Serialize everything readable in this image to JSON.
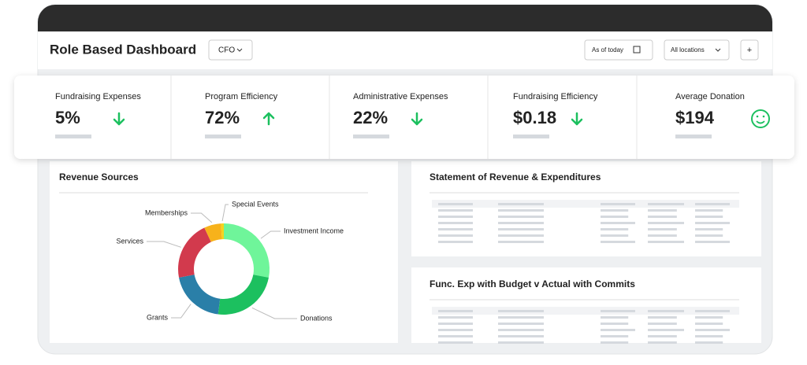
{
  "header": {
    "title": "Role Based Dashboard",
    "role": "CFO",
    "date_filter": "As of today",
    "location_filter": "All locations",
    "add_button": "+"
  },
  "kpis": [
    {
      "label": "Fundraising Expenses",
      "value": "5%",
      "icon": "down"
    },
    {
      "label": "Program Efficiency",
      "value": "72%",
      "icon": "up"
    },
    {
      "label": "Administrative Expenses",
      "value": "22%",
      "icon": "down"
    },
    {
      "label": "Fundraising Efficiency",
      "value": "$0.18",
      "icon": "down"
    },
    {
      "label": "Average Donation",
      "value": "$194",
      "icon": "smile"
    }
  ],
  "panels": {
    "revenue_title": "Revenue Sources",
    "statement_title": "Statement of Revenue & Expenditures",
    "func_title": "Func. Exp with Budget v Actual with Commits"
  },
  "chart_data": {
    "type": "pie",
    "categories": [
      "Investment Income",
      "Donations",
      "Grants",
      "Services",
      "Memberships",
      "Special Events"
    ],
    "values": [
      28,
      24,
      20,
      21,
      6,
      1
    ],
    "colors": [
      "#6ff59a",
      "#1cc05f",
      "#2a7fa8",
      "#d23a4d",
      "#f7b21b",
      "#f7d31b"
    ]
  }
}
